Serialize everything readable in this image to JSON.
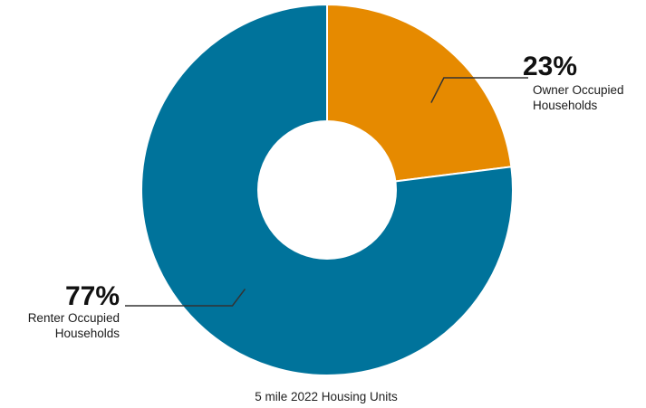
{
  "chart_data": {
    "type": "pie",
    "title": "",
    "caption": "5 mile 2022 Housing Units",
    "categories": [
      "Owner Occupied Households",
      "Renter Occupied Households"
    ],
    "values": [
      23,
      77
    ],
    "unit": "%",
    "series": [
      {
        "values": [
          23,
          77
        ],
        "colors": [
          "#e68a00",
          "#00739b"
        ]
      }
    ],
    "donut": true,
    "labels": [
      {
        "percent": "23%",
        "line1": "Owner Occupied",
        "line2": "Households"
      },
      {
        "percent": "77%",
        "line1": "Renter Occupied",
        "line2": "Households"
      }
    ],
    "legend": "none",
    "grid": false
  }
}
